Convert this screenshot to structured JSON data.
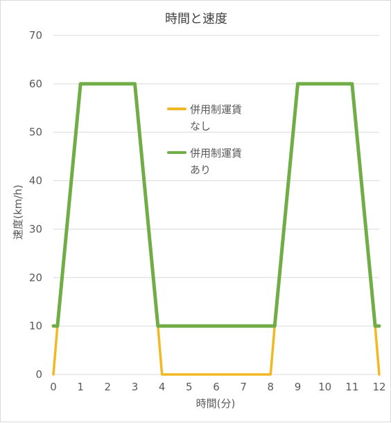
{
  "chart_data": {
    "type": "line",
    "title": "時間と速度",
    "xlabel": "時間(分)",
    "ylabel": "速度(km/h)",
    "xlim": [
      0,
      12
    ],
    "ylim": [
      0,
      70
    ],
    "xticks": [
      "0",
      "1",
      "2",
      "3",
      "4",
      "5",
      "6",
      "7",
      "8",
      "9",
      "10",
      "11",
      "12"
    ],
    "yticks": [
      "0",
      "10",
      "20",
      "30",
      "40",
      "50",
      "60",
      "70"
    ],
    "grid": "horizontal",
    "legend_position": "inside-right",
    "series": [
      {
        "name": "併用制運賃\nなし",
        "name_lines": [
          "併用制運賃",
          "なし"
        ],
        "color": "#F2B824",
        "points": [
          [
            0,
            0
          ],
          [
            0.15,
            10
          ],
          [
            1,
            60
          ],
          [
            3,
            60
          ],
          [
            3.85,
            10
          ],
          [
            4,
            0
          ],
          [
            8,
            0
          ],
          [
            8.15,
            10
          ],
          [
            9,
            60
          ],
          [
            11,
            60
          ],
          [
            11.85,
            10
          ],
          [
            12,
            0
          ]
        ]
      },
      {
        "name": "併用制運賃\nあり",
        "name_lines": [
          "併用制運賃",
          "あり"
        ],
        "color": "#70AD47",
        "points": [
          [
            0,
            10
          ],
          [
            0.15,
            10
          ],
          [
            1,
            60
          ],
          [
            3,
            60
          ],
          [
            3.85,
            10
          ],
          [
            8.15,
            10
          ],
          [
            9,
            60
          ],
          [
            11,
            60
          ],
          [
            11.85,
            10
          ],
          [
            12,
            10
          ]
        ]
      }
    ]
  }
}
